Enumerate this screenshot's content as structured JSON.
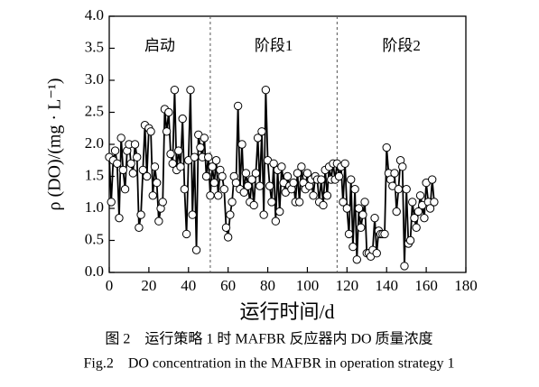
{
  "chart_data": {
    "type": "line",
    "x_label": "运行时间/d",
    "y_label": "ρ (DO)/(mg · L⁻¹)",
    "caption_cn": "图 2　运行策略 1 时 MAFBR 反应器内 DO 质量浓度",
    "caption_en": "Fig.2　DO concentration in the MAFBR in operation strategy 1",
    "annotations": [
      "启动",
      "阶段1",
      "阶段2"
    ],
    "phase_boundaries": [
      51,
      115
    ],
    "xlim": [
      0,
      180
    ],
    "xticks": [
      0,
      20,
      40,
      60,
      80,
      100,
      120,
      140,
      160,
      180
    ],
    "ylim": [
      0,
      4
    ],
    "yticks": [
      {
        "value": 0,
        "label": "0.0"
      },
      0.5,
      {
        "value": 1,
        "label": "1.0"
      },
      1.5,
      {
        "value": 2,
        "label": "2.0"
      },
      2.5,
      {
        "value": 3,
        "label": "3.0"
      },
      3.5,
      {
        "value": 4,
        "label": "4.0"
      }
    ],
    "series": [
      {
        "name": "DO",
        "color": "#000000",
        "x": [
          0,
          1,
          2,
          3,
          4,
          5,
          6,
          7,
          8,
          9,
          10,
          11,
          12,
          13,
          14,
          15,
          16,
          17,
          18,
          19,
          20,
          21,
          22,
          23,
          24,
          25,
          26,
          27,
          28,
          29,
          30,
          31,
          32,
          33,
          34,
          35,
          36,
          37,
          38,
          39,
          40,
          41,
          42,
          43,
          44,
          45,
          46,
          47,
          48,
          49,
          50,
          51,
          52,
          53,
          54,
          55,
          56,
          57,
          58,
          59,
          60,
          61,
          62,
          63,
          64,
          65,
          66,
          67,
          68,
          69,
          70,
          71,
          72,
          73,
          74,
          75,
          76,
          77,
          78,
          79,
          80,
          81,
          82,
          83,
          84,
          85,
          86,
          87,
          88,
          89,
          90,
          91,
          92,
          93,
          94,
          95,
          96,
          97,
          98,
          99,
          100,
          101,
          102,
          103,
          104,
          105,
          106,
          107,
          108,
          109,
          110,
          111,
          112,
          113,
          114,
          115,
          116,
          117,
          118,
          119,
          120,
          121,
          122,
          123,
          124,
          125,
          126,
          127,
          128,
          129,
          130,
          131,
          132,
          133,
          134,
          135,
          136,
          137,
          138,
          139,
          140,
          141,
          142,
          143,
          144,
          145,
          146,
          147,
          148,
          149,
          150,
          151,
          152,
          153,
          154,
          155,
          156,
          157,
          158,
          159,
          160,
          161,
          162,
          163,
          164
        ],
        "values": [
          1.8,
          1.1,
          1.75,
          1.9,
          1.7,
          0.85,
          2.1,
          1.6,
          1.3,
          1.9,
          2.0,
          1.7,
          1.55,
          2.0,
          1.8,
          0.7,
          0.9,
          1.6,
          2.3,
          1.5,
          2.25,
          2.2,
          1.2,
          1.65,
          1.4,
          0.8,
          1.0,
          1.1,
          2.55,
          2.2,
          2.5,
          1.85,
          1.7,
          2.85,
          1.6,
          1.9,
          1.65,
          2.4,
          1.3,
          0.6,
          1.75,
          2.85,
          0.9,
          1.8,
          0.35,
          2.15,
          1.95,
          1.8,
          2.1,
          1.5,
          1.8,
          1.2,
          1.65,
          1.4,
          1.75,
          1.2,
          1.6,
          1.5,
          1.3,
          0.7,
          0.55,
          0.9,
          1.1,
          1.5,
          1.4,
          2.6,
          1.3,
          2.0,
          1.25,
          1.55,
          1.35,
          1.1,
          1.45,
          1.05,
          1.55,
          2.1,
          1.35,
          2.2,
          0.9,
          2.85,
          1.75,
          1.35,
          1.1,
          1.7,
          0.8,
          1.6,
          0.95,
          1.65,
          1.4,
          1.25,
          1.5,
          1.35,
          1.3,
          1.4,
          1.1,
          1.55,
          1.1,
          1.65,
          1.4,
          1.3,
          1.55,
          1.35,
          1.45,
          1.2,
          1.5,
          1.45,
          1.1,
          1.45,
          1.05,
          1.6,
          1.2,
          1.65,
          1.45,
          1.7,
          1.45,
          1.7,
          1.5,
          1.65,
          1.1,
          1.7,
          1.0,
          0.6,
          1.45,
          0.4,
          1.3,
          0.2,
          1.0,
          0.7,
          0.9,
          1.1,
          0.3,
          0.3,
          0.25,
          0.35,
          0.85,
          0.3,
          0.65,
          0.6,
          0.6,
          0.6,
          1.95,
          1.55,
          1.45,
          1.35,
          1.55,
          0.95,
          1.3,
          1.75,
          1.65,
          0.1,
          1.3,
          0.45,
          0.5,
          1.1,
          0.85,
          0.7,
          0.95,
          1.2,
          1.05,
          0.85,
          1.4,
          1.1,
          1.0,
          1.45,
          1.1
        ]
      }
    ]
  }
}
